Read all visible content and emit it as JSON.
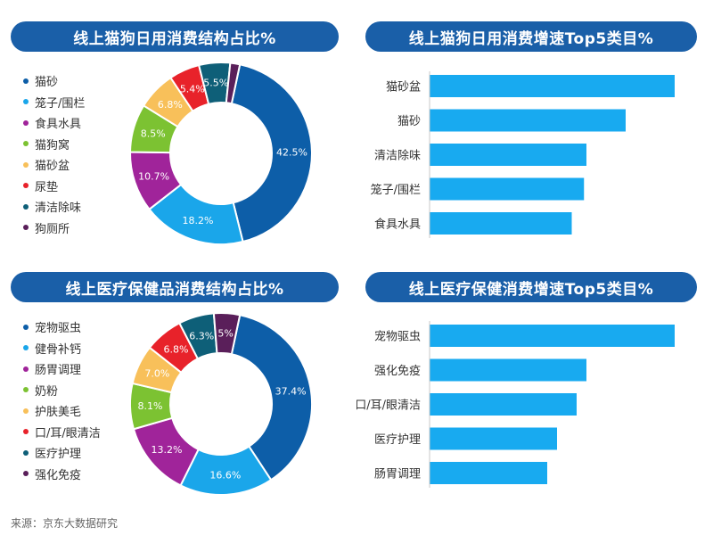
{
  "colors": {
    "title_bar": "#1a5fa8",
    "bar": "#18aaf0",
    "palette": [
      "#0d5ea8",
      "#1aa6ea",
      "#a0249a",
      "#7cc232",
      "#f8c05a",
      "#e8222a",
      "#0e5f78",
      "#5a1f5a"
    ]
  },
  "panels": {
    "cat_dog_share": {
      "title": "线上猫狗日用消费结构占比%"
    },
    "cat_dog_growth": {
      "title": "线上猫狗日用消费增速Top5类目%"
    },
    "health_share": {
      "title": "线上医疗保健品消费结构占比%"
    },
    "health_growth": {
      "title": "线上医疗保健消费增速Top5类目%"
    }
  },
  "source": "来源：京东大数据研究",
  "chart_data": [
    {
      "type": "pie",
      "title": "线上猫狗日用消费结构占比%",
      "categories": [
        "猫砂",
        "笼子/围栏",
        "食具水具",
        "猫狗窝",
        "猫砂盆",
        "尿垫",
        "清洁除味",
        "狗厕所"
      ],
      "values": [
        42.5,
        18.2,
        10.7,
        8.5,
        6.8,
        5.4,
        5.5,
        1.7
      ],
      "labels": [
        "42.5%",
        "18.2%",
        "10.7%",
        "8.5%",
        "6.8%",
        "5.4%",
        "5.5%",
        ""
      ],
      "legend": "left"
    },
    {
      "type": "bar",
      "orientation": "horizontal",
      "title": "线上猫狗日用消费增速Top5类目%",
      "categories": [
        "猫砂盆",
        "猫砂",
        "清洁除味",
        "笼子/围栏",
        "食具水具"
      ],
      "values": [
        100,
        80,
        64,
        63,
        58
      ]
    },
    {
      "type": "pie",
      "title": "线上医疗保健品消费结构占比%",
      "categories": [
        "宠物驱虫",
        "健骨补钙",
        "肠胃调理",
        "奶粉",
        "护肤美毛",
        "口/耳/眼清洁",
        "医疗护理",
        "强化免疫"
      ],
      "values": [
        37.4,
        16.6,
        13.2,
        8.1,
        7.0,
        6.8,
        6.3,
        4.6
      ],
      "labels": [
        "37.4%",
        "16.6%",
        "13.2%",
        "8.1%",
        "7.0%",
        "6.8%",
        "6.3%",
        "5%"
      ],
      "legend": "left"
    },
    {
      "type": "bar",
      "orientation": "horizontal",
      "title": "线上医疗保健消费增速Top5类目%",
      "categories": [
        "宠物驱虫",
        "强化免疫",
        "口/耳/眼清洁",
        "医疗护理",
        "肠胃调理"
      ],
      "values": [
        100,
        64,
        60,
        52,
        48
      ]
    }
  ]
}
